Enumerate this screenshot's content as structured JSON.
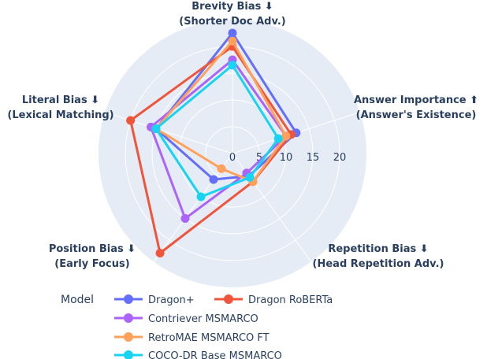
{
  "chart_data": {
    "type": "radar",
    "axes": [
      {
        "line1": "Brevity Bias ⬇",
        "line2": "(Shorter Doc Adv.)"
      },
      {
        "line1": "Answer Importance ⬆",
        "line2": "(Answer's Existence)"
      },
      {
        "line1": "Repetition Bias ⬇",
        "line2": "(Head Repetition Adv.)"
      },
      {
        "line1": "Position Bias ⬇",
        "line2": "(Early Focus)"
      },
      {
        "line1": "Literal Bias ⬇",
        "line2": "(Lexical Matching)"
      }
    ],
    "radial_ticks": [
      "0",
      "5",
      "10",
      "15",
      "20"
    ],
    "radial_range": [
      0,
      25
    ],
    "legend_title": "Model",
    "series": [
      {
        "name": "Dragon+",
        "color": "#636efa",
        "values": [
          22.5,
          12.5,
          5.2,
          6.0,
          15.0
        ]
      },
      {
        "name": "Dragon RoBERTa",
        "color": "#ef553b",
        "values": [
          20.0,
          11.5,
          6.5,
          23.0,
          20.0
        ]
      },
      {
        "name": "Contriever MSMARCO",
        "color": "#ab63fa",
        "values": [
          17.5,
          10.5,
          4.5,
          15.0,
          16.0
        ]
      },
      {
        "name": "RetroMAE MSMARCO FT",
        "color": "#ffa15a",
        "values": [
          21.0,
          10.5,
          6.5,
          3.5,
          15.0
        ]
      },
      {
        "name": "COCO-DR Base MSMARCO",
        "color": "#19d3f3",
        "values": [
          16.5,
          9.0,
          5.5,
          10.0,
          15.0
        ]
      }
    ]
  }
}
